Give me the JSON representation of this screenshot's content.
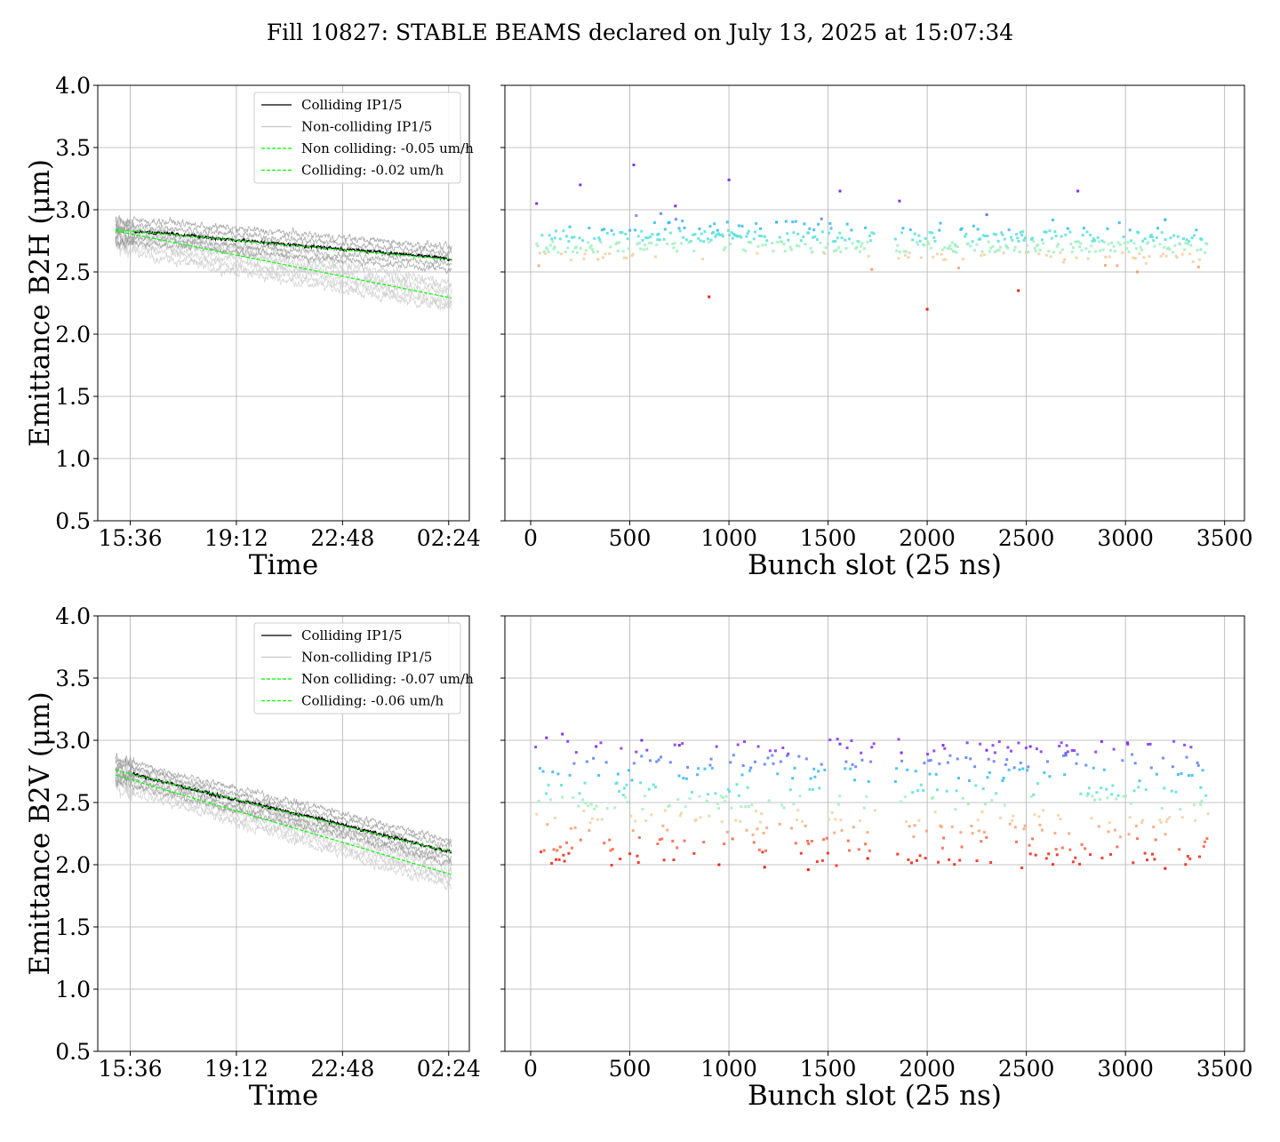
{
  "figure": {
    "title": "Fill 10827: STABLE BEAMS declared on July 13, 2025 at 15:07:34"
  },
  "colors": {
    "colliding": "#000000",
    "noncolliding": "#c8c8c8",
    "band_dark": "#8c8c8c",
    "fit": "#00ff00",
    "grid": "#b0b0b0"
  },
  "chart_data": [
    {
      "id": "b2h_time",
      "type": "line",
      "xlabel": "Time",
      "ylabel": "Emittance B2H (μm)",
      "x_ticklabels": [
        "15:36",
        "19:12",
        "22:48",
        "02:24"
      ],
      "x_tick_hours": [
        15.6,
        19.2,
        22.8,
        26.4
      ],
      "xlim_hours": [
        14.5,
        27.1
      ],
      "ylim": [
        0.5,
        4.0
      ],
      "yticks": [
        "0.5",
        "1.0",
        "1.5",
        "2.0",
        "2.5",
        "3.0",
        "3.5",
        "4.0"
      ],
      "grid": true,
      "legend_position": "upper right",
      "legend": [
        {
          "label": "Colliding IP1/5",
          "style": "solid-black"
        },
        {
          "label": "Non-colliding IP1/5",
          "style": "solid-lightgray"
        },
        {
          "label": "Non colliding: -0.05 um/h",
          "style": "dashed-green"
        },
        {
          "label": "Colliding: -0.02 um/h",
          "style": "dashed-green"
        }
      ],
      "series": [
        {
          "name": "Colliding IP1/5",
          "x_hours": [
            15.1,
            16.0,
            17.0,
            18.0,
            19.0,
            20.0,
            21.0,
            22.0,
            23.0,
            24.0,
            25.0,
            26.0,
            26.5
          ],
          "values": [
            2.82,
            2.82,
            2.81,
            2.78,
            2.76,
            2.74,
            2.72,
            2.7,
            2.68,
            2.66,
            2.64,
            2.62,
            2.6
          ]
        },
        {
          "name": "Non-colliding IP1/5",
          "x_hours": [
            15.1,
            16.0,
            18.0,
            20.0,
            22.0,
            24.0,
            26.0,
            26.5
          ],
          "values": [
            2.8,
            2.74,
            2.65,
            2.57,
            2.49,
            2.41,
            2.33,
            2.3
          ]
        },
        {
          "name": "Non colliding: -0.05 um/h",
          "x_hours": [
            15.1,
            26.5
          ],
          "values": [
            2.83,
            2.29
          ]
        },
        {
          "name": "Colliding: -0.02 um/h",
          "x_hours": [
            15.1,
            26.5
          ],
          "values": [
            2.84,
            2.6
          ]
        }
      ]
    },
    {
      "id": "b2h_bunch",
      "type": "scatter",
      "xlabel": "Bunch slot (25 ns)",
      "xlim": [
        -130,
        3600
      ],
      "xticks": [
        "0",
        "500",
        "1000",
        "1500",
        "2000",
        "2500",
        "3000",
        "3500"
      ],
      "ylim": [
        0.5,
        4.0
      ],
      "grid": true,
      "occupied_slot_ranges": [
        [
          25,
          1740
        ],
        [
          1840,
          3420
        ]
      ],
      "typical_range": [
        2.3,
        3.1
      ],
      "series": [
        {
          "name": "",
          "x": [
            30,
            120,
            250,
            340,
            520,
            640,
            730,
            900,
            1000,
            1100,
            1240,
            1420,
            1560,
            1720,
            1860,
            2000,
            2140,
            2300,
            2460,
            2600,
            2760,
            2900,
            3060,
            3200,
            3380
          ],
          "values": [
            3.05,
            2.7,
            3.2,
            2.6,
            3.36,
            2.8,
            3.03,
            2.3,
            3.24,
            2.74,
            2.9,
            2.66,
            3.15,
            2.52,
            3.07,
            2.2,
            2.72,
            2.96,
            2.35,
            2.82,
            3.15,
            2.62,
            2.5,
            2.92,
            2.68
          ]
        }
      ]
    },
    {
      "id": "b2v_time",
      "type": "line",
      "xlabel": "Time",
      "ylabel": "Emittance B2V (μm)",
      "x_ticklabels": [
        "15:36",
        "19:12",
        "22:48",
        "02:24"
      ],
      "x_tick_hours": [
        15.6,
        19.2,
        22.8,
        26.4
      ],
      "xlim_hours": [
        14.5,
        27.1
      ],
      "ylim": [
        0.5,
        4.0
      ],
      "yticks": [
        "0.5",
        "1.0",
        "1.5",
        "2.0",
        "2.5",
        "3.0",
        "3.5",
        "4.0"
      ],
      "grid": true,
      "legend_position": "upper right",
      "legend": [
        {
          "label": "Colliding IP1/5",
          "style": "solid-black"
        },
        {
          "label": "Non-colliding IP1/5",
          "style": "solid-lightgray"
        },
        {
          "label": "Non colliding: -0.07 um/h",
          "style": "dashed-green"
        },
        {
          "label": "Colliding: -0.06 um/h",
          "style": "dashed-green"
        }
      ],
      "series": [
        {
          "name": "Colliding IP1/5",
          "x_hours": [
            15.1,
            16.0,
            17.0,
            18.0,
            19.0,
            20.0,
            21.0,
            22.0,
            23.0,
            24.0,
            25.0,
            26.0,
            26.5
          ],
          "values": [
            2.77,
            2.71,
            2.65,
            2.59,
            2.53,
            2.48,
            2.42,
            2.37,
            2.31,
            2.25,
            2.19,
            2.13,
            2.1
          ]
        },
        {
          "name": "Non-colliding IP1/5",
          "x_hours": [
            15.1,
            16.0,
            18.0,
            20.0,
            22.0,
            24.0,
            26.0,
            26.5
          ],
          "values": [
            2.72,
            2.66,
            2.52,
            2.38,
            2.24,
            2.1,
            1.96,
            1.93
          ]
        },
        {
          "name": "Non colliding: -0.07 um/h",
          "x_hours": [
            15.1,
            26.5
          ],
          "values": [
            2.72,
            1.92
          ]
        },
        {
          "name": "Colliding: -0.06 um/h",
          "x_hours": [
            15.1,
            26.5
          ],
          "values": [
            2.76,
            2.1
          ]
        }
      ]
    },
    {
      "id": "b2v_bunch",
      "type": "scatter",
      "xlabel": "Bunch slot (25 ns)",
      "xlim": [
        -130,
        3600
      ],
      "xticks": [
        "0",
        "500",
        "1000",
        "1500",
        "2000",
        "2500",
        "3000",
        "3500"
      ],
      "ylim": [
        0.5,
        4.0
      ],
      "grid": true,
      "occupied_slot_ranges": [
        [
          25,
          1740
        ],
        [
          1840,
          3420
        ]
      ],
      "typical_range": [
        2.0,
        3.0
      ],
      "series": [
        {
          "name": "",
          "x": [
            80,
            160,
            330,
            560,
            750,
            950,
            1180,
            1400,
            1560,
            1700,
            1870,
            2080,
            2300,
            2520,
            2700,
            2880,
            3010,
            3200,
            3380
          ],
          "values": [
            3.02,
            3.05,
            2.95,
            3.0,
            2.96,
            2.0,
            1.98,
            1.96,
            2.97,
            2.05,
            2.9,
            2.96,
            2.92,
            2.95,
            2.88,
            2.99,
            2.98,
            1.97,
            2.62
          ]
        }
      ]
    }
  ]
}
